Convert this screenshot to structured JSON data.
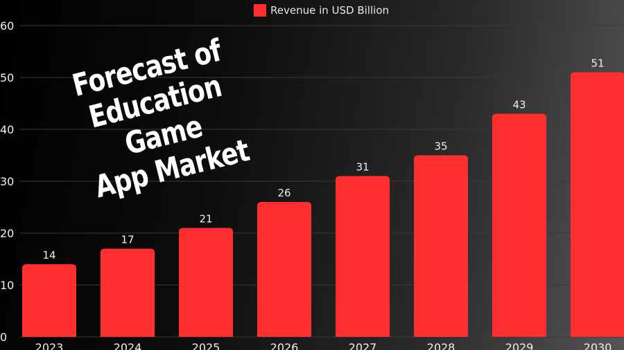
{
  "chart_data": {
    "type": "bar",
    "categories": [
      "2023",
      "2024",
      "2025",
      "2026",
      "2027",
      "2028",
      "2029",
      "2030"
    ],
    "series": [
      {
        "name": "Revenue in USD Billion",
        "values": [
          14,
          17,
          21,
          26,
          31,
          35,
          43,
          51
        ]
      }
    ],
    "title_lines": [
      "Forecast of",
      "Education Game",
      "App Market"
    ],
    "xlabel": "",
    "ylabel": "",
    "ylim": [
      0,
      60
    ],
    "yticks": [
      0,
      10,
      20,
      30,
      40,
      50,
      60
    ],
    "grid": true,
    "legend_position": "top-center",
    "bar_color": "#ff2f2f",
    "label_color": "#f0f0f0",
    "tick_color": "#f0f0f0",
    "grid_color": "#3a3a3a"
  }
}
